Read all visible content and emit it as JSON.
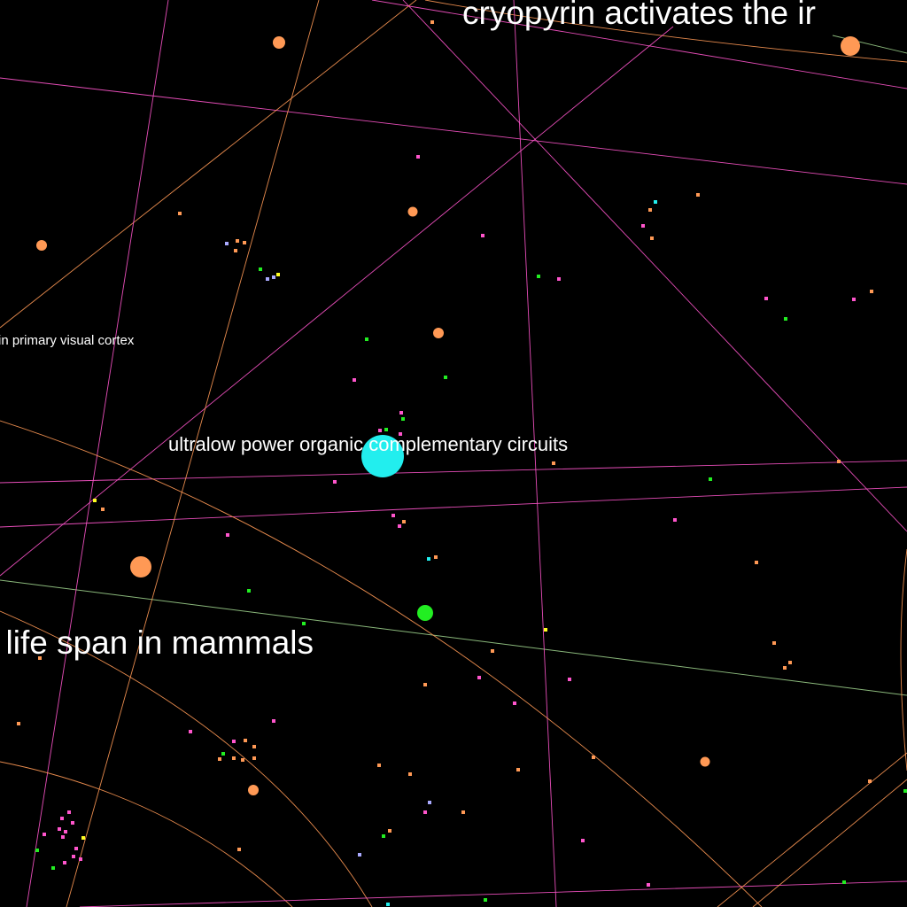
{
  "labels": {
    "top_right": "cryopyrin activates the ir",
    "left_small": "in primary visual cortex",
    "center": "ultralow power organic complementary circuits",
    "bottom_left": "l life span in mammals"
  },
  "colors": {
    "background": "#000000",
    "pink": "#ff55cc",
    "orange": "#ff9955",
    "green": "#22ee22",
    "cyan": "#22eeee",
    "lavender": "#aaaaff",
    "yellow": "#ffff22",
    "sage": "#99cc88"
  }
}
